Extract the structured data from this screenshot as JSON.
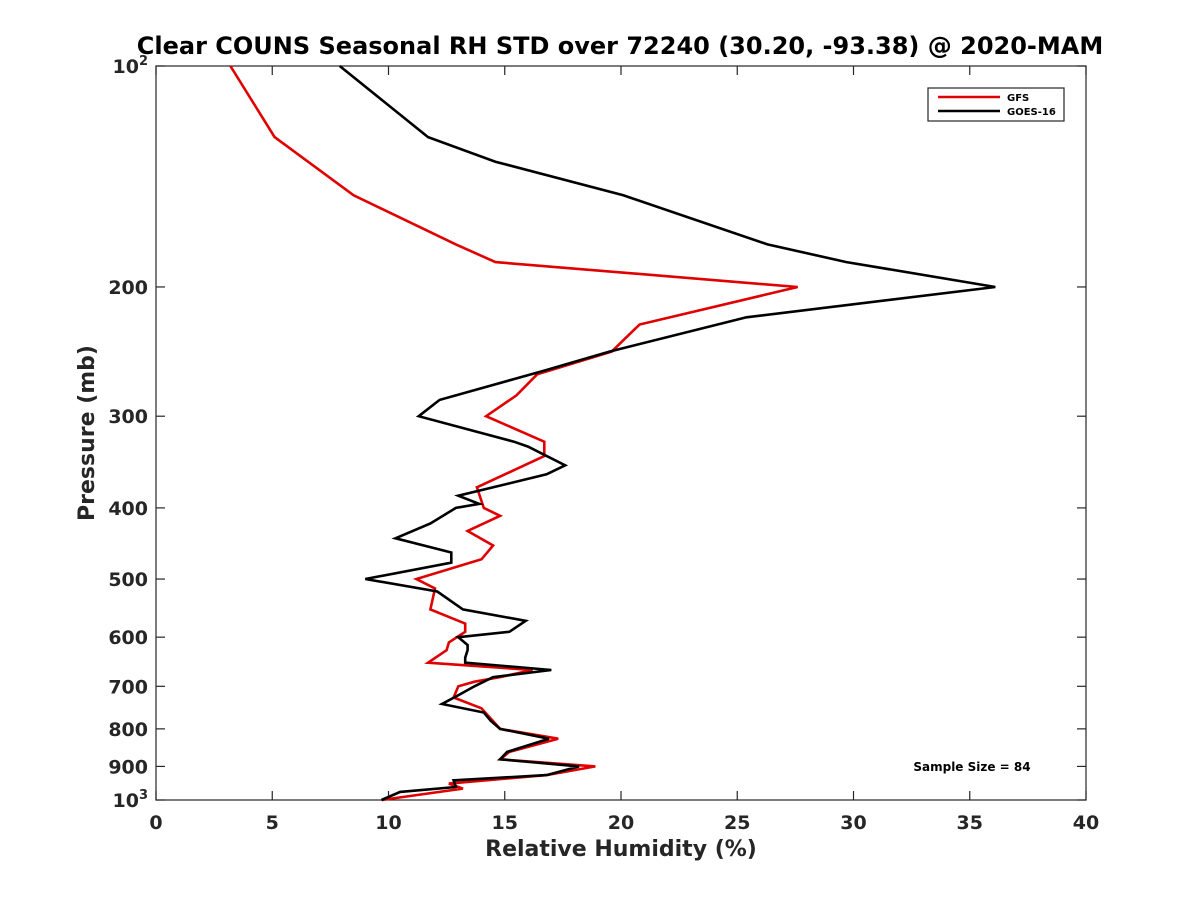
{
  "chart_data": {
    "type": "line",
    "title": "Clear COUNS Seasonal RH STD over 72240 (30.20, -93.38) @ 2020-MAM",
    "xlabel": "Relative Humidity (%)",
    "ylabel": "Pressure (mb)",
    "xlim": [
      0,
      40
    ],
    "ylim": [
      100,
      1000
    ],
    "yscale": "log",
    "y_reversed": true,
    "xticks": [
      0,
      5,
      10,
      15,
      20,
      25,
      30,
      35,
      40
    ],
    "yticks": [
      {
        "value": 100,
        "base": "10",
        "exp": "2"
      },
      {
        "value": 200,
        "label": "200"
      },
      {
        "value": 300,
        "label": "300"
      },
      {
        "value": 400,
        "label": "400"
      },
      {
        "value": 500,
        "label": "500"
      },
      {
        "value": 600,
        "label": "600"
      },
      {
        "value": 700,
        "label": "700"
      },
      {
        "value": 800,
        "label": "800"
      },
      {
        "value": 900,
        "label": "900"
      },
      {
        "value": 1000,
        "base": "10",
        "exp": "3"
      }
    ],
    "legend_position": "top-right",
    "annotation": "Sample Size = 84",
    "series": [
      {
        "name": "GFS",
        "color": "#e00000",
        "points": [
          [
            3.2,
            100
          ],
          [
            5.1,
            125
          ],
          [
            8.5,
            150
          ],
          [
            12.9,
            175
          ],
          [
            14.6,
            185
          ],
          [
            27.6,
            200
          ],
          [
            20.8,
            225
          ],
          [
            19.6,
            245
          ],
          [
            16.4,
            263
          ],
          [
            15.5,
            281
          ],
          [
            14.2,
            300
          ],
          [
            16.7,
            325
          ],
          [
            16.7,
            340
          ],
          [
            13.8,
            375
          ],
          [
            14.1,
            400
          ],
          [
            14.8,
            410
          ],
          [
            13.4,
            430
          ],
          [
            14.5,
            450
          ],
          [
            14.0,
            470
          ],
          [
            11.2,
            500
          ],
          [
            12.0,
            515
          ],
          [
            11.8,
            550
          ],
          [
            13.3,
            575
          ],
          [
            13.3,
            590
          ],
          [
            12.6,
            610
          ],
          [
            12.5,
            625
          ],
          [
            11.7,
            650
          ],
          [
            16.2,
            665
          ],
          [
            14.8,
            680
          ],
          [
            13.7,
            690
          ],
          [
            13.0,
            700
          ],
          [
            12.8,
            725
          ],
          [
            14.0,
            750
          ],
          [
            14.8,
            800
          ],
          [
            17.3,
            825
          ],
          [
            15.2,
            860
          ],
          [
            14.8,
            880
          ],
          [
            18.9,
            900
          ],
          [
            16.8,
            925
          ],
          [
            12.6,
            950
          ],
          [
            13.2,
            965
          ],
          [
            9.7,
            1000
          ]
        ]
      },
      {
        "name": "GOES-16",
        "color": "#000000",
        "points": [
          [
            7.9,
            100
          ],
          [
            11.7,
            125
          ],
          [
            14.6,
            135
          ],
          [
            20.1,
            150
          ],
          [
            26.3,
            175
          ],
          [
            29.7,
            185
          ],
          [
            36.1,
            200
          ],
          [
            25.4,
            220
          ],
          [
            19.5,
            245
          ],
          [
            16.7,
            260
          ],
          [
            12.2,
            285
          ],
          [
            11.3,
            300
          ],
          [
            15.4,
            325
          ],
          [
            16.0,
            330
          ],
          [
            17.6,
            350
          ],
          [
            16.8,
            360
          ],
          [
            13.0,
            385
          ],
          [
            13.9,
            395
          ],
          [
            12.9,
            400
          ],
          [
            11.8,
            420
          ],
          [
            10.3,
            440
          ],
          [
            12.7,
            460
          ],
          [
            12.7,
            475
          ],
          [
            9.0,
            500
          ],
          [
            12.1,
            520
          ],
          [
            13.2,
            550
          ],
          [
            15.9,
            570
          ],
          [
            15.2,
            590
          ],
          [
            13.0,
            600
          ],
          [
            13.4,
            615
          ],
          [
            13.4,
            625
          ],
          [
            13.3,
            640
          ],
          [
            13.3,
            650
          ],
          [
            17.0,
            665
          ],
          [
            14.5,
            680
          ],
          [
            13.7,
            700
          ],
          [
            13.0,
            720
          ],
          [
            12.3,
            740
          ],
          [
            14.1,
            760
          ],
          [
            14.4,
            780
          ],
          [
            14.8,
            800
          ],
          [
            16.9,
            825
          ],
          [
            15.1,
            860
          ],
          [
            14.8,
            880
          ],
          [
            18.2,
            900
          ],
          [
            16.8,
            925
          ],
          [
            12.8,
            940
          ],
          [
            12.9,
            960
          ],
          [
            10.5,
            975
          ],
          [
            9.7,
            1000
          ]
        ]
      }
    ]
  }
}
